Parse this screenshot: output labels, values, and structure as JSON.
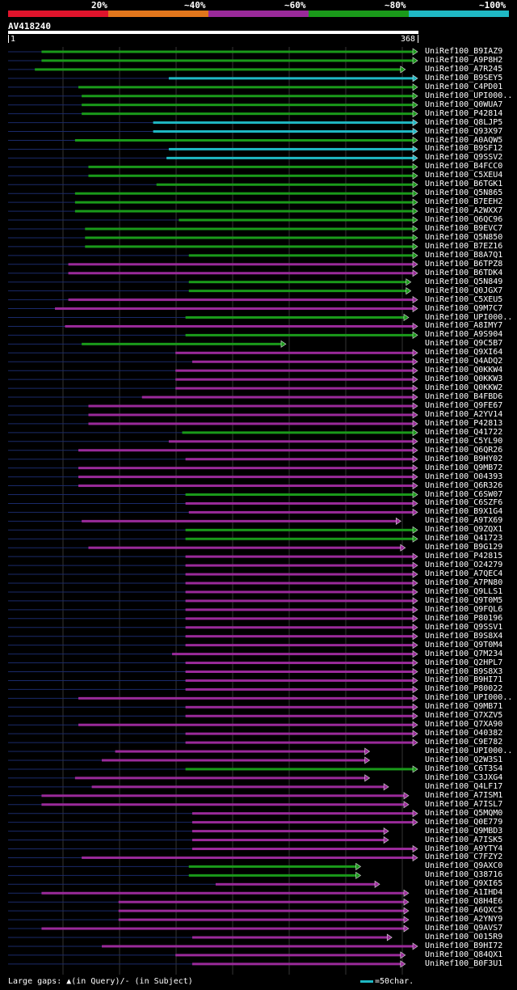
{
  "legend": {
    "labels": [
      "20%",
      "~40%",
      "~60%",
      "~80%",
      "~100%"
    ],
    "colors": [
      "#e0142c",
      "#e2761c",
      "#9a2a9a",
      "#1a9a1a",
      "#1fb8c4"
    ]
  },
  "query": {
    "name": "AV418240",
    "start_label": "1",
    "end_label": "368"
  },
  "footer": {
    "text": "Large gaps: ▲(in Query)/- (in Subject)",
    "scale_label": "=50char."
  },
  "chart_data": {
    "type": "alignment-overview",
    "query_length": 368,
    "hits": [
      {
        "name": "UniRef100_B9IAZ9",
        "start": 31,
        "end": 368,
        "identity": "~80%",
        "color": "#1a9a1a"
      },
      {
        "name": "UniRef100_A9P8H2",
        "start": 31,
        "end": 368,
        "identity": "~80%",
        "color": "#1a9a1a"
      },
      {
        "name": "UniRef100_A7R245",
        "start": 25,
        "end": 357,
        "identity": "~80%",
        "color": "#1a9a1a"
      },
      {
        "name": "UniRef100_B9SEY5",
        "start": 145,
        "end": 368,
        "identity": "~100%",
        "color": "#1fb8c4"
      },
      {
        "name": "UniRef100_C4PD01",
        "start": 64,
        "end": 368,
        "identity": "~80%",
        "color": "#1a9a1a"
      },
      {
        "name": "UniRef100_UPI000..",
        "start": 67,
        "end": 368,
        "identity": "~80%",
        "color": "#1a9a1a"
      },
      {
        "name": "UniRef100_Q0WUA7",
        "start": 67,
        "end": 368,
        "identity": "~80%",
        "color": "#1a9a1a"
      },
      {
        "name": "UniRef100_P42814",
        "start": 67,
        "end": 368,
        "identity": "~80%",
        "color": "#1a9a1a"
      },
      {
        "name": "UniRef100_Q8LJP5",
        "start": 131,
        "end": 368,
        "identity": "~100%",
        "color": "#1fb8c4"
      },
      {
        "name": "UniRef100_Q93X97",
        "start": 131,
        "end": 368,
        "identity": "~100%",
        "color": "#1fb8c4"
      },
      {
        "name": "UniRef100_A0AQW5",
        "start": 61,
        "end": 368,
        "identity": "~80%",
        "color": "#1a9a1a"
      },
      {
        "name": "UniRef100_B9SF12",
        "start": 145,
        "end": 368,
        "identity": "~100%",
        "color": "#1fb8c4"
      },
      {
        "name": "UniRef100_Q9SSV2",
        "start": 143,
        "end": 368,
        "identity": "~100%",
        "color": "#1fb8c4"
      },
      {
        "name": "UniRef100_B4FCC0",
        "start": 73,
        "end": 368,
        "identity": "~80%",
        "color": "#1a9a1a"
      },
      {
        "name": "UniRef100_C5XEU4",
        "start": 73,
        "end": 368,
        "identity": "~80%",
        "color": "#1a9a1a"
      },
      {
        "name": "UniRef100_B6TGK1",
        "start": 134,
        "end": 368,
        "identity": "~80%",
        "color": "#1a9a1a"
      },
      {
        "name": "UniRef100_Q5N865",
        "start": 61,
        "end": 368,
        "identity": "~80%",
        "color": "#1a9a1a"
      },
      {
        "name": "UniRef100_B7EEH2",
        "start": 61,
        "end": 368,
        "identity": "~80%",
        "color": "#1a9a1a"
      },
      {
        "name": "UniRef100_A2WXX7",
        "start": 61,
        "end": 368,
        "identity": "~80%",
        "color": "#1a9a1a"
      },
      {
        "name": "UniRef100_Q6QC96",
        "start": 154,
        "end": 368,
        "identity": "~80%",
        "color": "#1a9a1a"
      },
      {
        "name": "UniRef100_B9EVC7",
        "start": 70,
        "end": 368,
        "identity": "~80%",
        "color": "#1a9a1a"
      },
      {
        "name": "UniRef100_Q5N850",
        "start": 70,
        "end": 368,
        "identity": "~80%",
        "color": "#1a9a1a"
      },
      {
        "name": "UniRef100_B7EZ16",
        "start": 70,
        "end": 368,
        "identity": "~80%",
        "color": "#1a9a1a"
      },
      {
        "name": "UniRef100_B8A7Q1",
        "start": 163,
        "end": 368,
        "identity": "~80%",
        "color": "#1a9a1a"
      },
      {
        "name": "UniRef100_B6TPZ8",
        "start": 55,
        "end": 368,
        "identity": "~60%",
        "color": "#9a2a9a"
      },
      {
        "name": "UniRef100_B6TDK4",
        "start": 55,
        "end": 368,
        "identity": "~60%",
        "color": "#9a2a9a"
      },
      {
        "name": "UniRef100_Q5N849",
        "start": 163,
        "end": 362,
        "identity": "~80%",
        "color": "#1a9a1a"
      },
      {
        "name": "UniRef100_Q0JGX7",
        "start": 163,
        "end": 362,
        "identity": "~80%",
        "color": "#1a9a1a"
      },
      {
        "name": "UniRef100_C5XEU5",
        "start": 55,
        "end": 368,
        "identity": "~60%",
        "color": "#9a2a9a"
      },
      {
        "name": "UniRef100_Q9M7C7",
        "start": 43,
        "end": 368,
        "identity": "~60%",
        "color": "#9a2a9a"
      },
      {
        "name": "UniRef100_UPI000..",
        "start": 160,
        "end": 360,
        "identity": "~80%",
        "color": "#1a9a1a"
      },
      {
        "name": "UniRef100_A8IMY7",
        "start": 52,
        "end": 368,
        "identity": "~60%",
        "color": "#9a2a9a"
      },
      {
        "name": "UniRef100_A9S904",
        "start": 160,
        "end": 368,
        "identity": "~80%",
        "color": "#1a9a1a"
      },
      {
        "name": "UniRef100_Q9C5B7",
        "start": 67,
        "end": 250,
        "identity": "~80%",
        "color": "#1a9a1a"
      },
      {
        "name": "UniRef100_Q9XI64",
        "start": 151,
        "end": 368,
        "identity": "~60%",
        "color": "#9a2a9a"
      },
      {
        "name": "UniRef100_Q4ADQ2",
        "start": 166,
        "end": 368,
        "identity": "~60%",
        "color": "#9a2a9a"
      },
      {
        "name": "UniRef100_Q0KKW4",
        "start": 151,
        "end": 368,
        "identity": "~60%",
        "color": "#9a2a9a"
      },
      {
        "name": "UniRef100_Q0KKW3",
        "start": 151,
        "end": 368,
        "identity": "~60%",
        "color": "#9a2a9a"
      },
      {
        "name": "UniRef100_Q0KKW2",
        "start": 151,
        "end": 368,
        "identity": "~60%",
        "color": "#9a2a9a"
      },
      {
        "name": "UniRef100_B4FBD6",
        "start": 121,
        "end": 368,
        "identity": "~60%",
        "color": "#9a2a9a"
      },
      {
        "name": "UniRef100_Q9FE67",
        "start": 73,
        "end": 368,
        "identity": "~60%",
        "color": "#9a2a9a"
      },
      {
        "name": "UniRef100_A2YV14",
        "start": 73,
        "end": 368,
        "identity": "~60%",
        "color": "#9a2a9a"
      },
      {
        "name": "UniRef100_P42813",
        "start": 73,
        "end": 368,
        "identity": "~60%",
        "color": "#9a2a9a"
      },
      {
        "name": "UniRef100_Q41722",
        "start": 157,
        "end": 368,
        "identity": "~80%",
        "color": "#1a9a1a"
      },
      {
        "name": "UniRef100_C5YL90",
        "start": 145,
        "end": 368,
        "identity": "~60%",
        "color": "#9a2a9a"
      },
      {
        "name": "UniRef100_Q6QR26",
        "start": 64,
        "end": 368,
        "identity": "~60%",
        "color": "#9a2a9a"
      },
      {
        "name": "UniRef100_B9HY02",
        "start": 160,
        "end": 368,
        "identity": "~60%",
        "color": "#9a2a9a"
      },
      {
        "name": "UniRef100_Q9MB72",
        "start": 64,
        "end": 368,
        "identity": "~60%",
        "color": "#9a2a9a"
      },
      {
        "name": "UniRef100_O04393",
        "start": 64,
        "end": 368,
        "identity": "~60%",
        "color": "#9a2a9a"
      },
      {
        "name": "UniRef100_Q6R326",
        "start": 64,
        "end": 368,
        "identity": "~60%",
        "color": "#9a2a9a"
      },
      {
        "name": "UniRef100_C6SW07",
        "start": 160,
        "end": 368,
        "identity": "~80%",
        "color": "#1a9a1a"
      },
      {
        "name": "UniRef100_C6SZF6",
        "start": 160,
        "end": 368,
        "identity": "~60%",
        "color": "#9a2a9a"
      },
      {
        "name": "UniRef100_B9X1G4",
        "start": 163,
        "end": 368,
        "identity": "~60%",
        "color": "#9a2a9a"
      },
      {
        "name": "UniRef100_A9TX69",
        "start": 67,
        "end": 353,
        "identity": "~60%",
        "color": "#9a2a9a"
      },
      {
        "name": "UniRef100_Q9ZQX1",
        "start": 160,
        "end": 368,
        "identity": "~80%",
        "color": "#1a9a1a"
      },
      {
        "name": "UniRef100_Q41723",
        "start": 160,
        "end": 368,
        "identity": "~80%",
        "color": "#1a9a1a"
      },
      {
        "name": "UniRef100_B9G129",
        "start": 73,
        "end": 357,
        "identity": "~60%",
        "color": "#9a2a9a"
      },
      {
        "name": "UniRef100_P42815",
        "start": 160,
        "end": 368,
        "identity": "~60%",
        "color": "#9a2a9a"
      },
      {
        "name": "UniRef100_O24279",
        "start": 160,
        "end": 368,
        "identity": "~60%",
        "color": "#9a2a9a"
      },
      {
        "name": "UniRef100_A7QEC4",
        "start": 160,
        "end": 368,
        "identity": "~60%",
        "color": "#9a2a9a"
      },
      {
        "name": "UniRef100_A7PN80",
        "start": 160,
        "end": 368,
        "identity": "~60%",
        "color": "#9a2a9a"
      },
      {
        "name": "UniRef100_Q9LLS1",
        "start": 160,
        "end": 368,
        "identity": "~60%",
        "color": "#9a2a9a"
      },
      {
        "name": "UniRef100_Q9T0M5",
        "start": 160,
        "end": 368,
        "identity": "~60%",
        "color": "#9a2a9a"
      },
      {
        "name": "UniRef100_Q9FQL6",
        "start": 160,
        "end": 368,
        "identity": "~60%",
        "color": "#9a2a9a"
      },
      {
        "name": "UniRef100_P80196",
        "start": 160,
        "end": 368,
        "identity": "~60%",
        "color": "#9a2a9a"
      },
      {
        "name": "UniRef100_Q9SSV1",
        "start": 160,
        "end": 368,
        "identity": "~60%",
        "color": "#9a2a9a"
      },
      {
        "name": "UniRef100_B9S8X4",
        "start": 160,
        "end": 368,
        "identity": "~60%",
        "color": "#9a2a9a"
      },
      {
        "name": "UniRef100_Q9T0M4",
        "start": 160,
        "end": 368,
        "identity": "~60%",
        "color": "#9a2a9a"
      },
      {
        "name": "UniRef100_Q7M234",
        "start": 148,
        "end": 368,
        "identity": "~60%",
        "color": "#9a2a9a"
      },
      {
        "name": "UniRef100_Q2HPL7",
        "start": 160,
        "end": 368,
        "identity": "~60%",
        "color": "#9a2a9a"
      },
      {
        "name": "UniRef100_B9S8X3",
        "start": 160,
        "end": 368,
        "identity": "~60%",
        "color": "#9a2a9a"
      },
      {
        "name": "UniRef100_B9HI71",
        "start": 160,
        "end": 368,
        "identity": "~60%",
        "color": "#9a2a9a"
      },
      {
        "name": "UniRef100_P80022",
        "start": 160,
        "end": 368,
        "identity": "~60%",
        "color": "#9a2a9a"
      },
      {
        "name": "UniRef100_UPI000..",
        "start": 64,
        "end": 368,
        "identity": "~60%",
        "color": "#9a2a9a"
      },
      {
        "name": "UniRef100_Q9MB71",
        "start": 160,
        "end": 368,
        "identity": "~60%",
        "color": "#9a2a9a"
      },
      {
        "name": "UniRef100_Q7XZV5",
        "start": 160,
        "end": 368,
        "identity": "~60%",
        "color": "#9a2a9a"
      },
      {
        "name": "UniRef100_Q7XA90",
        "start": 64,
        "end": 368,
        "identity": "~60%",
        "color": "#9a2a9a"
      },
      {
        "name": "UniRef100_O40382",
        "start": 160,
        "end": 368,
        "identity": "~60%",
        "color": "#9a2a9a"
      },
      {
        "name": "UniRef100_C9E782",
        "start": 160,
        "end": 368,
        "identity": "~60%",
        "color": "#9a2a9a"
      },
      {
        "name": "UniRef100_UPI000..",
        "start": 97,
        "end": 325,
        "identity": "~60%",
        "color": "#9a2a9a"
      },
      {
        "name": "UniRef100_Q2W3S1",
        "start": 85,
        "end": 325,
        "identity": "~60%",
        "color": "#9a2a9a"
      },
      {
        "name": "UniRef100_C6T3S4",
        "start": 160,
        "end": 368,
        "identity": "~80%",
        "color": "#1a9a1a"
      },
      {
        "name": "UniRef100_C3JXG4",
        "start": 61,
        "end": 325,
        "identity": "~60%",
        "color": "#9a2a9a"
      },
      {
        "name": "UniRef100_Q4LF17",
        "start": 76,
        "end": 342,
        "identity": "~60%",
        "color": "#9a2a9a"
      },
      {
        "name": "UniRef100_A7ISM1",
        "start": 31,
        "end": 360,
        "identity": "~60%",
        "color": "#9a2a9a"
      },
      {
        "name": "UniRef100_A7ISL7",
        "start": 31,
        "end": 360,
        "identity": "~60%",
        "color": "#9a2a9a"
      },
      {
        "name": "UniRef100_Q5MQM0",
        "start": 166,
        "end": 368,
        "identity": "~60%",
        "color": "#9a2a9a"
      },
      {
        "name": "UniRef100_Q0E779",
        "start": 166,
        "end": 368,
        "identity": "~60%",
        "color": "#9a2a9a"
      },
      {
        "name": "UniRef100_Q9MBD3",
        "start": 166,
        "end": 342,
        "identity": "~60%",
        "color": "#9a2a9a"
      },
      {
        "name": "UniRef100_A7ISK5",
        "start": 166,
        "end": 342,
        "identity": "~60%",
        "color": "#9a2a9a"
      },
      {
        "name": "UniRef100_A9YTY4",
        "start": 166,
        "end": 368,
        "identity": "~60%",
        "color": "#9a2a9a"
      },
      {
        "name": "UniRef100_C7FZY2",
        "start": 67,
        "end": 368,
        "identity": "~60%",
        "color": "#9a2a9a"
      },
      {
        "name": "UniRef100_Q9AXC0",
        "start": 163,
        "end": 317,
        "identity": "~80%",
        "color": "#1a9a1a"
      },
      {
        "name": "UniRef100_Q38716",
        "start": 163,
        "end": 317,
        "identity": "~80%",
        "color": "#1a9a1a"
      },
      {
        "name": "UniRef100_Q9XI65",
        "start": 187,
        "end": 334,
        "identity": "~60%",
        "color": "#9a2a9a"
      },
      {
        "name": "UniRef100_A1IHD4",
        "start": 31,
        "end": 360,
        "identity": "~60%",
        "color": "#9a2a9a"
      },
      {
        "name": "UniRef100_Q8H4E6",
        "start": 100,
        "end": 360,
        "identity": "~60%",
        "color": "#9a2a9a"
      },
      {
        "name": "UniRef100_A6QXC5",
        "start": 100,
        "end": 360,
        "identity": "~60%",
        "color": "#9a2a9a"
      },
      {
        "name": "UniRef100_A2YNY9",
        "start": 100,
        "end": 360,
        "identity": "~60%",
        "color": "#9a2a9a"
      },
      {
        "name": "UniRef100_Q9AVS7",
        "start": 31,
        "end": 360,
        "identity": "~60%",
        "color": "#9a2a9a"
      },
      {
        "name": "UniRef100_O015R9",
        "start": 166,
        "end": 345,
        "identity": "~60%",
        "color": "#9a2a9a"
      },
      {
        "name": "UniRef100_B9HI72",
        "start": 85,
        "end": 368,
        "identity": "~60%",
        "color": "#9a2a9a"
      },
      {
        "name": "UniRef100_Q84QX1",
        "start": 151,
        "end": 357,
        "identity": "~60%",
        "color": "#9a2a9a"
      },
      {
        "name": "UniRef100_B0F3U1",
        "start": 166,
        "end": 357,
        "identity": "~60%",
        "color": "#9a2a9a"
      }
    ]
  }
}
